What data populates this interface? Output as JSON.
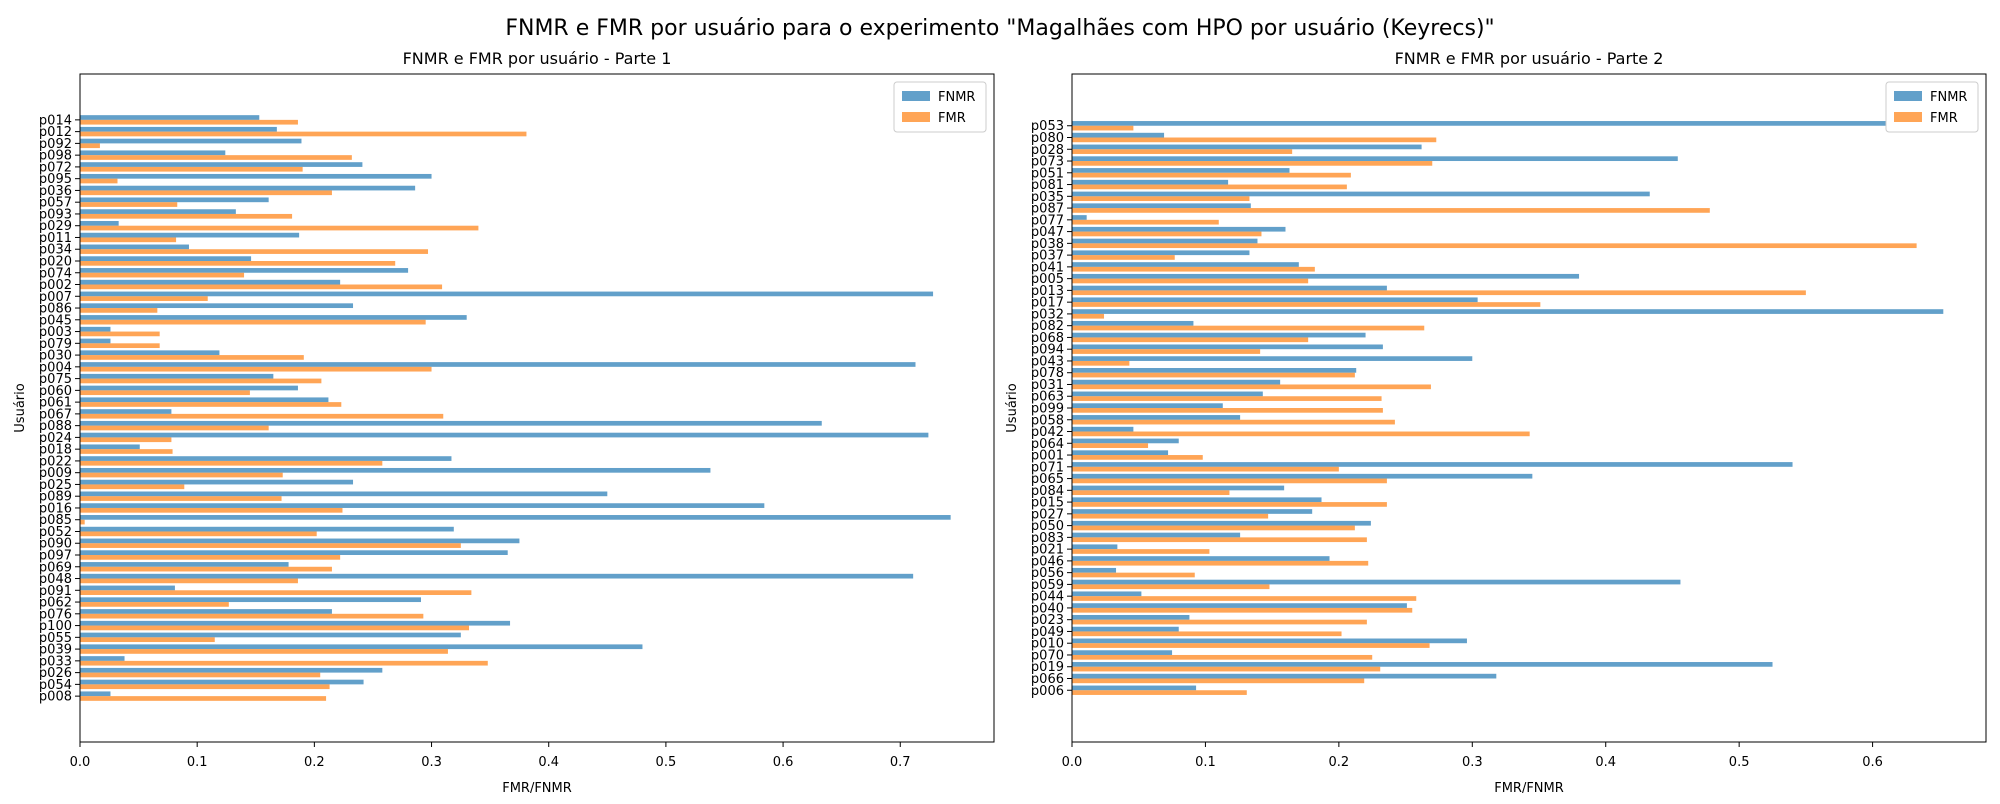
{
  "title": "FNMR e FMR por usuário para o experimento \"Magalhães com HPO por usuário (Keyrecs)\"",
  "colors": {
    "FNMR": "#1f77b4",
    "FMR": "#ff7f0e"
  },
  "chart_data": [
    {
      "type": "bar",
      "orientation": "horizontal",
      "title": "FNMR e FMR por usuário - Parte 1",
      "xlabel": "FMR/FNMR",
      "ylabel": "Usuário",
      "xlim": [
        0,
        0.78
      ],
      "xticks": [
        0.0,
        0.1,
        0.2,
        0.3,
        0.4,
        0.5,
        0.6,
        0.7
      ],
      "xtick_labels": [
        "0.0",
        "0.1",
        "0.2",
        "0.3",
        "0.4",
        "0.5",
        "0.6",
        "0.7"
      ],
      "legend_position": "top-right",
      "categories": [
        "p008",
        "p054",
        "p026",
        "p033",
        "p039",
        "p055",
        "p100",
        "p076",
        "p062",
        "p091",
        "p048",
        "p069",
        "p097",
        "p090",
        "p052",
        "p085",
        "p016",
        "p089",
        "p025",
        "p009",
        "p022",
        "p018",
        "p024",
        "p088",
        "p067",
        "p061",
        "p060",
        "p075",
        "p004",
        "p030",
        "p079",
        "p003",
        "p045",
        "p086",
        "p007",
        "p002",
        "p074",
        "p020",
        "p034",
        "p011",
        "p029",
        "p093",
        "p057",
        "p036",
        "p095",
        "p072",
        "p098",
        "p092",
        "p012",
        "p014"
      ],
      "series": [
        {
          "name": "FNMR",
          "values": [
            0.026,
            0.242,
            0.258,
            0.038,
            0.48,
            0.325,
            0.367,
            0.215,
            0.291,
            0.081,
            0.711,
            0.178,
            0.365,
            0.375,
            0.319,
            0.743,
            0.584,
            0.45,
            0.233,
            0.538,
            0.317,
            0.051,
            0.724,
            0.633,
            0.078,
            0.212,
            0.186,
            0.165,
            0.713,
            0.119,
            0.026,
            0.026,
            0.33,
            0.233,
            0.728,
            0.222,
            0.28,
            0.146,
            0.093,
            0.187,
            0.033,
            0.133,
            0.161,
            0.286,
            0.3,
            0.241,
            0.124,
            0.189,
            0.168,
            0.153
          ]
        },
        {
          "name": "FMR",
          "values": [
            0.21,
            0.213,
            0.205,
            0.348,
            0.314,
            0.115,
            0.332,
            0.293,
            0.127,
            0.334,
            0.186,
            0.215,
            0.222,
            0.325,
            0.202,
            0.004,
            0.224,
            0.172,
            0.089,
            0.173,
            0.258,
            0.079,
            0.078,
            0.161,
            0.31,
            0.223,
            0.145,
            0.206,
            0.3,
            0.191,
            0.068,
            0.068,
            0.295,
            0.066,
            0.109,
            0.309,
            0.14,
            0.269,
            0.297,
            0.082,
            0.34,
            0.181,
            0.083,
            0.215,
            0.032,
            0.19,
            0.232,
            0.017,
            0.381,
            0.186
          ]
        }
      ]
    },
    {
      "type": "bar",
      "orientation": "horizontal",
      "title": "FNMR e FMR por usuário - Parte 2",
      "xlabel": "FMR/FNMR",
      "ylabel": "Usuário",
      "xlim": [
        0,
        0.685
      ],
      "xticks": [
        0.0,
        0.1,
        0.2,
        0.3,
        0.4,
        0.5,
        0.6
      ],
      "xtick_labels": [
        "0.0",
        "0.1",
        "0.2",
        "0.3",
        "0.4",
        "0.5",
        "0.6"
      ],
      "legend_position": "top-right",
      "categories": [
        "p006",
        "p066",
        "p019",
        "p070",
        "p010",
        "p049",
        "p023",
        "p040",
        "p044",
        "p059",
        "p056",
        "p046",
        "p021",
        "p083",
        "p050",
        "p027",
        "p015",
        "p084",
        "p065",
        "p071",
        "p001",
        "p064",
        "p042",
        "p058",
        "p099",
        "p063",
        "p031",
        "p078",
        "p043",
        "p094",
        "p068",
        "p082",
        "p032",
        "p017",
        "p013",
        "p005",
        "p041",
        "p037",
        "p038",
        "p047",
        "p077",
        "p087",
        "p035",
        "p081",
        "p051",
        "p073",
        "p028",
        "p080",
        "p053"
      ],
      "series": [
        {
          "name": "FNMR",
          "values": [
            0.093,
            0.318,
            0.525,
            0.075,
            0.296,
            0.08,
            0.088,
            0.251,
            0.052,
            0.456,
            0.033,
            0.193,
            0.034,
            0.126,
            0.224,
            0.18,
            0.187,
            0.159,
            0.345,
            0.54,
            0.072,
            0.08,
            0.046,
            0.126,
            0.113,
            0.143,
            0.156,
            0.213,
            0.3,
            0.233,
            0.22,
            0.091,
            0.653,
            0.304,
            0.236,
            0.38,
            0.17,
            0.133,
            0.139,
            0.16,
            0.011,
            0.134,
            0.433,
            0.117,
            0.163,
            0.454,
            0.262,
            0.069,
            0.61
          ]
        },
        {
          "name": "FMR",
          "values": [
            0.131,
            0.219,
            0.231,
            0.225,
            0.268,
            0.202,
            0.221,
            0.255,
            0.258,
            0.148,
            0.092,
            0.222,
            0.103,
            0.221,
            0.212,
            0.147,
            0.236,
            0.118,
            0.236,
            0.2,
            0.098,
            0.057,
            0.343,
            0.242,
            0.233,
            0.232,
            0.269,
            0.212,
            0.043,
            0.141,
            0.177,
            0.264,
            0.024,
            0.351,
            0.55,
            0.177,
            0.182,
            0.077,
            0.633,
            0.142,
            0.11,
            0.478,
            0.133,
            0.206,
            0.209,
            0.27,
            0.165,
            0.273,
            0.046
          ]
        }
      ]
    }
  ]
}
